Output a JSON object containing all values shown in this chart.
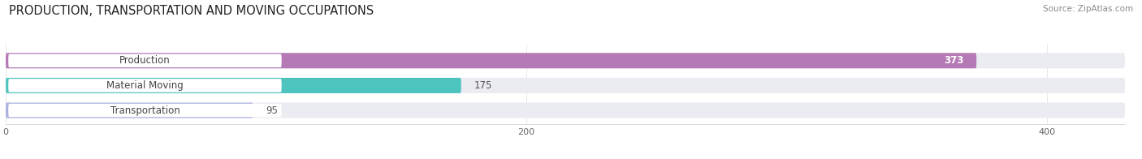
{
  "title": "PRODUCTION, TRANSPORTATION AND MOVING OCCUPATIONS",
  "source": "Source: ZipAtlas.com",
  "categories": [
    "Production",
    "Material Moving",
    "Transportation"
  ],
  "values": [
    373,
    175,
    95
  ],
  "bar_colors": [
    "#b57ab5",
    "#4ec4be",
    "#aab0dd"
  ],
  "bar_bg_color": "#ebebf2",
  "label_bg_color": "#ffffff",
  "xlim_max": 430,
  "xticks": [
    0,
    200,
    400
  ],
  "title_fontsize": 10.5,
  "label_fontsize": 8.5,
  "value_fontsize": 8.5,
  "figsize": [
    14.06,
    1.96
  ],
  "dpi": 100
}
